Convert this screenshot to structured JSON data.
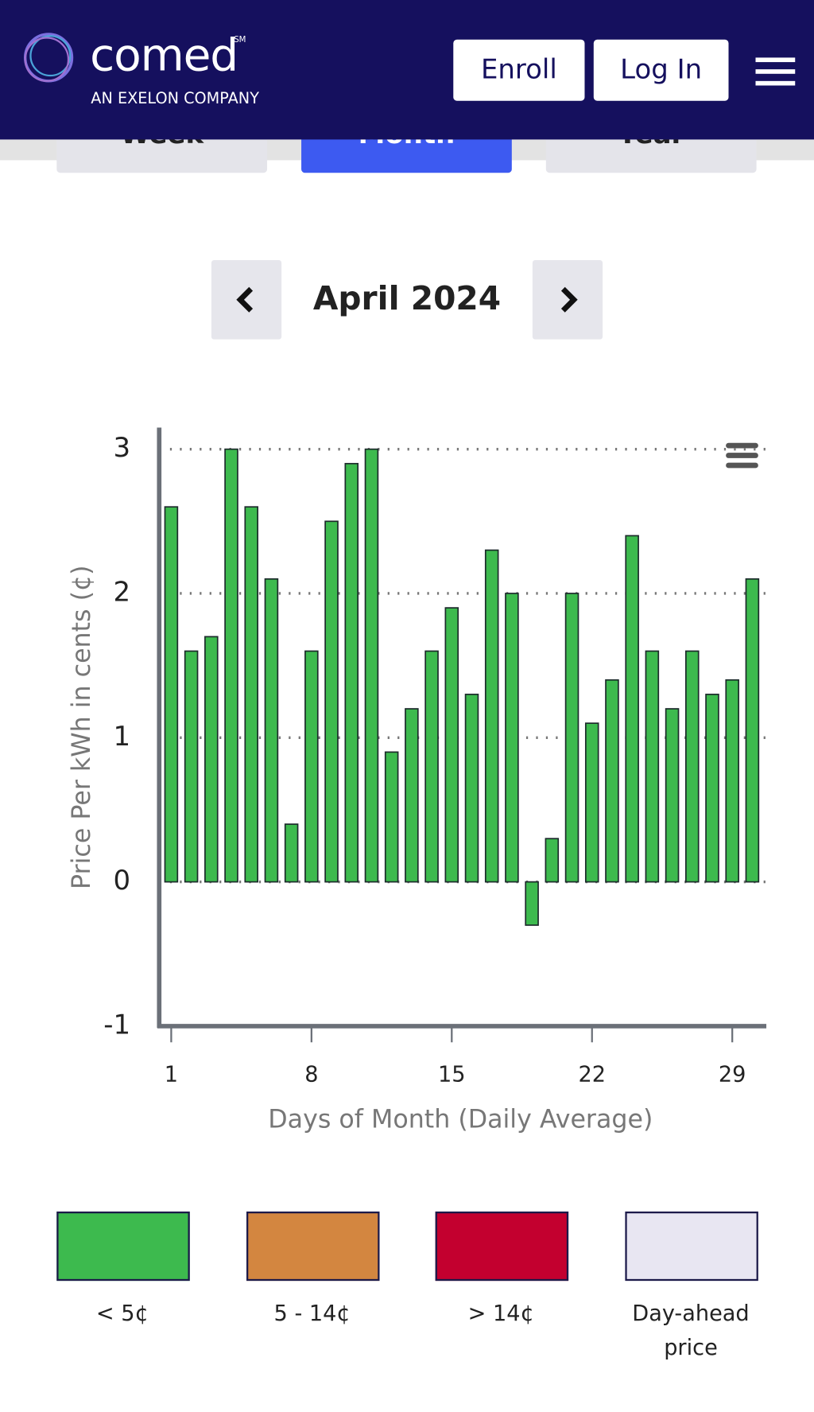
{
  "header": {
    "logo": "comed",
    "logo_mark": "SM",
    "tagline": "AN EXELON COMPANY",
    "buttons": [
      "Enroll",
      "Log In"
    ]
  },
  "tabs": [
    "Week",
    "Month",
    "Year"
  ],
  "period": "April 2024",
  "chart_data": {
    "type": "bar",
    "x": [
      1,
      2,
      3,
      4,
      5,
      6,
      7,
      8,
      9,
      10,
      11,
      12,
      13,
      14,
      15,
      16,
      17,
      18,
      19,
      20,
      21,
      22,
      23,
      24,
      25,
      26,
      27,
      28,
      29,
      30
    ],
    "values": [
      2.6,
      1.6,
      1.7,
      3.0,
      2.6,
      2.1,
      0.4,
      1.6,
      2.5,
      2.9,
      3.0,
      0.9,
      1.2,
      1.6,
      1.9,
      1.3,
      2.3,
      2.0,
      -0.3,
      0.3,
      2.0,
      1.1,
      1.4,
      2.4,
      1.6,
      1.2,
      1.6,
      1.3,
      1.4,
      2.1
    ],
    "color": "#3dba4e",
    "xlim": [
      0.4,
      30.7
    ],
    "xticks": [
      1,
      8,
      15,
      22,
      29
    ],
    "ylim": [
      -1,
      3.15
    ],
    "yticks": [
      -1,
      0,
      1,
      2,
      3
    ],
    "grid": true,
    "x_label": "Days of Month (Daily Average)",
    "y_label": "Price Per kWh in cents (¢)"
  },
  "legend": [
    {
      "label": "< 5¢",
      "color": "#3dba4e"
    },
    {
      "label": "5 - 14¢",
      "color": "#d38640"
    },
    {
      "label": "> 14¢",
      "color": "#c3002f"
    },
    {
      "label": "Day-ahead price",
      "color": "#e8e6f2"
    }
  ]
}
